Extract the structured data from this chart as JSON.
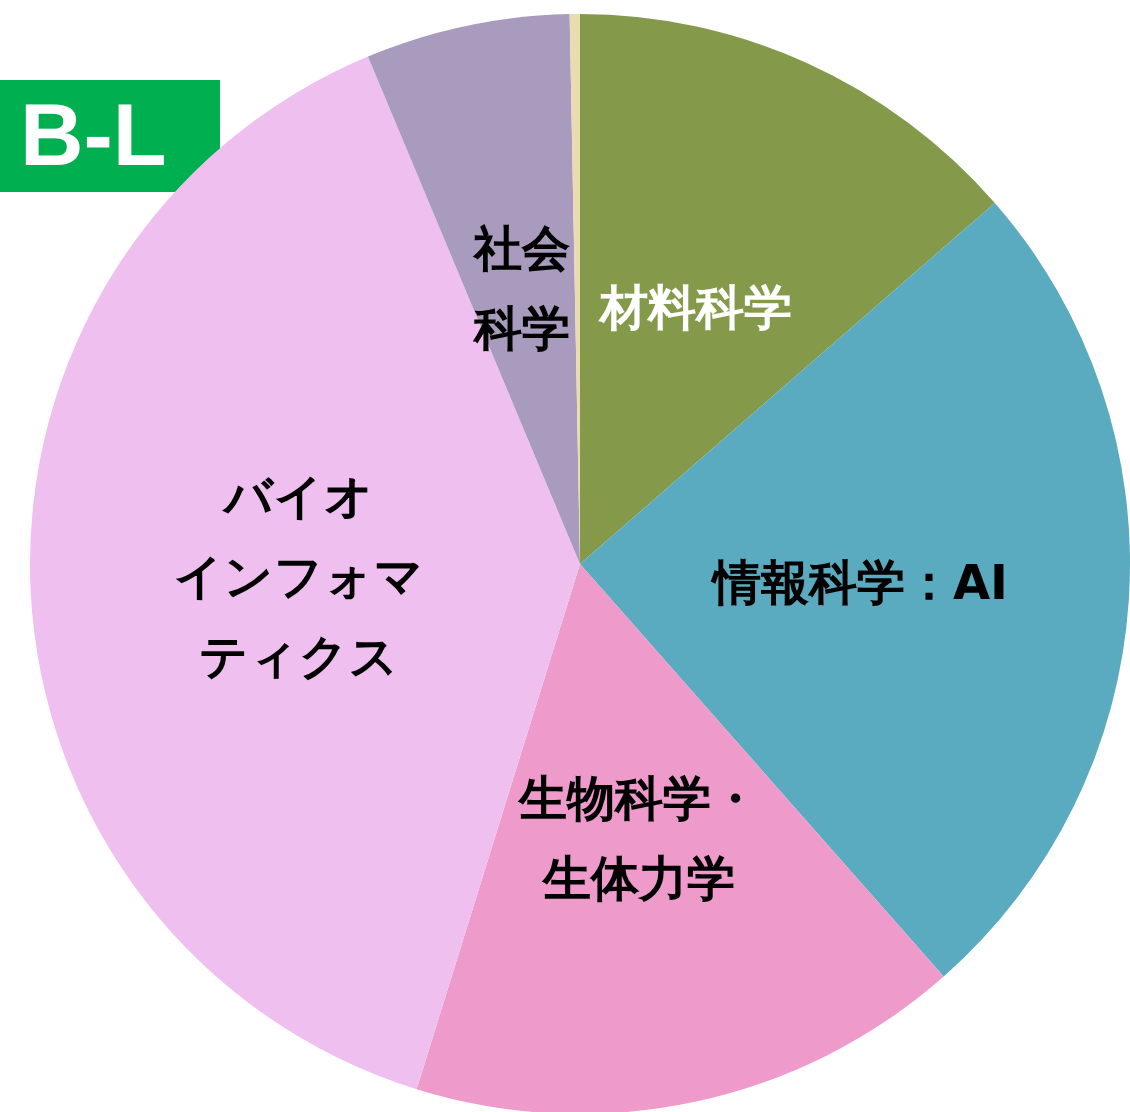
{
  "chart_data": {
    "type": "pie",
    "categories": [
      "材料科学",
      "情報科学：AI",
      "生物科学・生体力学",
      "バイオインフォマティクス",
      "社会科学",
      null
    ],
    "values": [
      13.6,
      24.9,
      16.3,
      38.9,
      6.0,
      0.3
    ],
    "colors": [
      "#849a4a",
      "#5aabc0",
      "#ee9acb",
      "#efbff0",
      "#a89bbd",
      "#e8dcb0"
    ],
    "annotations": [
      "B-L"
    ],
    "legend": false
  }
}
